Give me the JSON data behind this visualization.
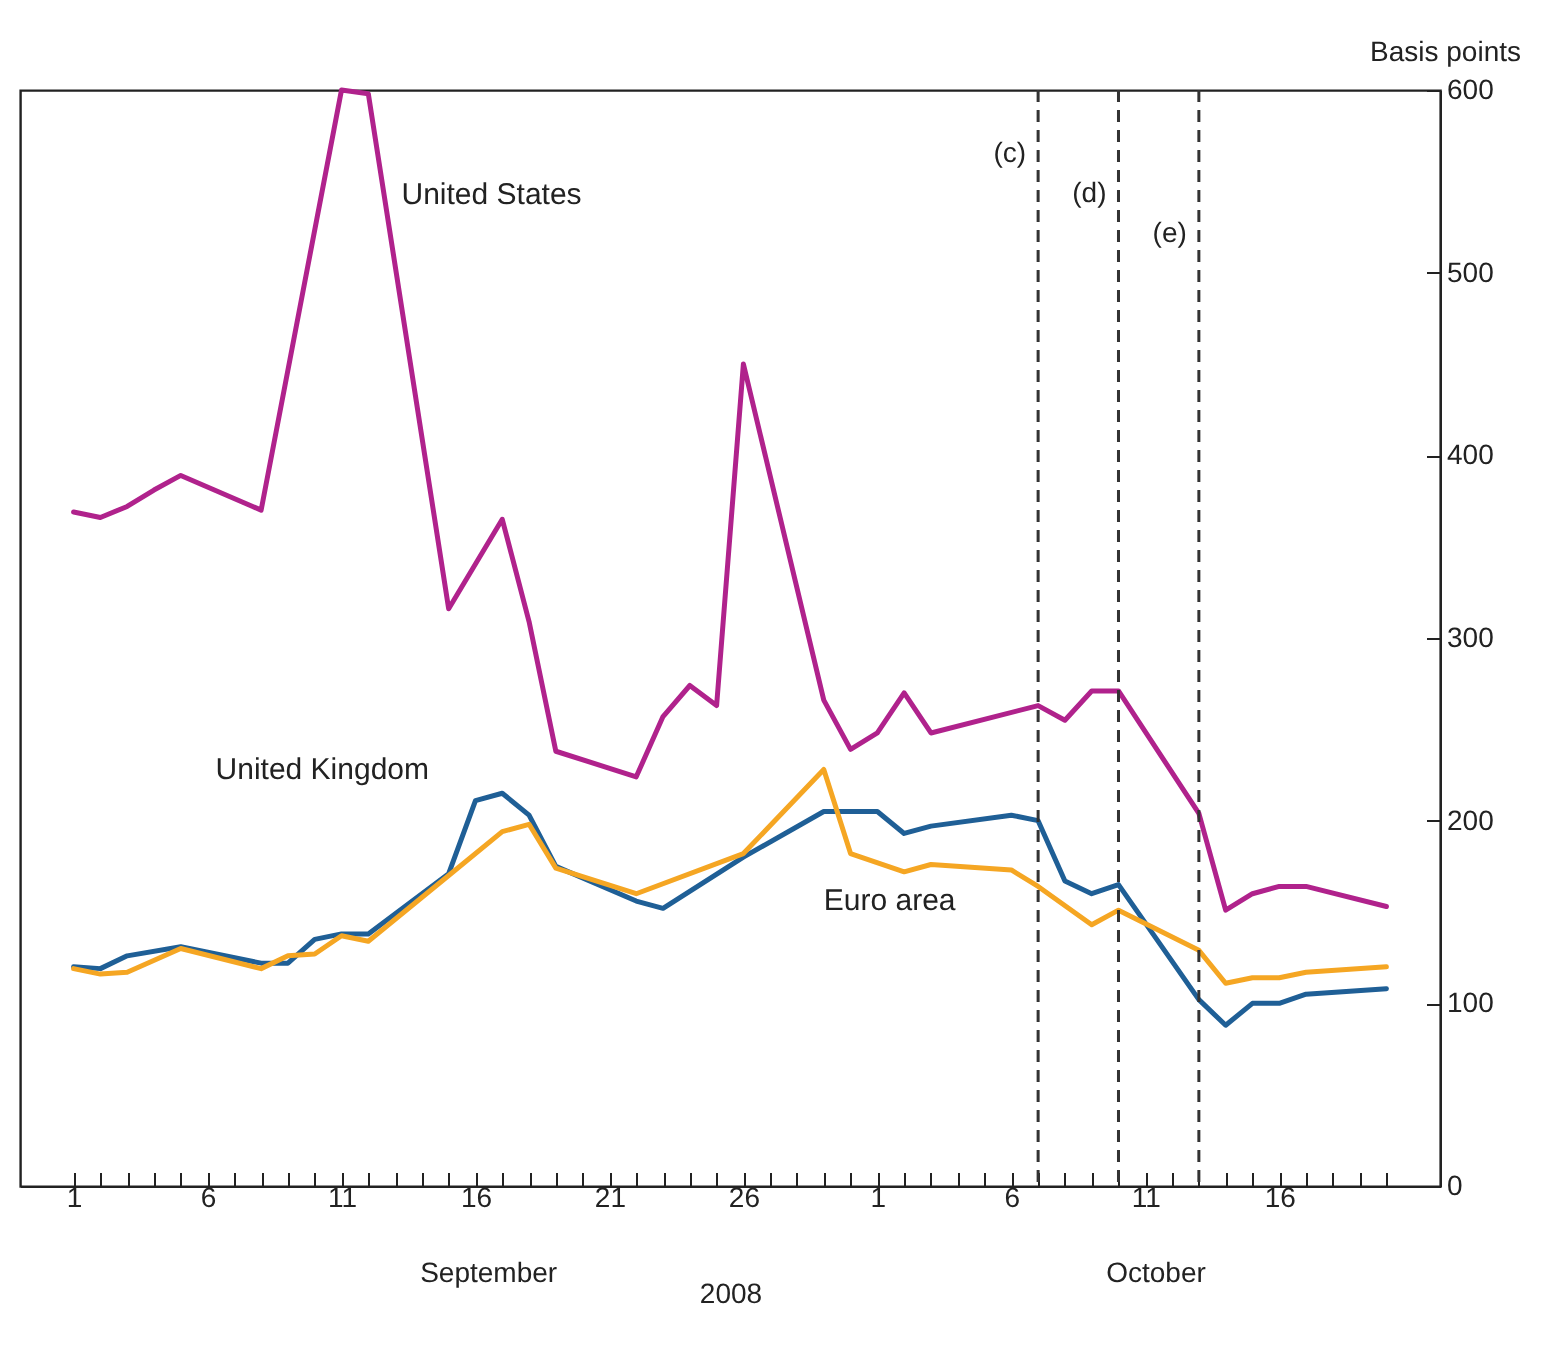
{
  "chart_data": {
    "type": "line",
    "xlabel": "2008",
    "ylabel": "Basis points",
    "annotations": [
      "September",
      "October"
    ],
    "xlim": [
      "2008-08-30",
      "2008-10-22"
    ],
    "xticks": [
      {
        "value": "2008-09-01",
        "label": "1"
      },
      {
        "value": "2008-09-02",
        "label": null
      },
      {
        "value": "2008-09-03",
        "label": null
      },
      {
        "value": "2008-09-04",
        "label": null
      },
      {
        "value": "2008-09-05",
        "label": null
      },
      {
        "value": "2008-09-06",
        "label": "6"
      },
      {
        "value": "2008-09-07",
        "label": null
      },
      {
        "value": "2008-09-08",
        "label": null
      },
      {
        "value": "2008-09-09",
        "label": null
      },
      {
        "value": "2008-09-10",
        "label": null
      },
      {
        "value": "2008-09-11",
        "label": "11"
      },
      {
        "value": "2008-09-12",
        "label": null
      },
      {
        "value": "2008-09-13",
        "label": null
      },
      {
        "value": "2008-09-14",
        "label": null
      },
      {
        "value": "2008-09-15",
        "label": null
      },
      {
        "value": "2008-09-16",
        "label": "16"
      },
      {
        "value": "2008-09-17",
        "label": null
      },
      {
        "value": "2008-09-18",
        "label": null
      },
      {
        "value": "2008-09-19",
        "label": null
      },
      {
        "value": "2008-09-20",
        "label": null
      },
      {
        "value": "2008-09-21",
        "label": "21"
      },
      {
        "value": "2008-09-22",
        "label": null
      },
      {
        "value": "2008-09-23",
        "label": null
      },
      {
        "value": "2008-09-24",
        "label": null
      },
      {
        "value": "2008-09-25",
        "label": null
      },
      {
        "value": "2008-09-26",
        "label": "26"
      },
      {
        "value": "2008-09-27",
        "label": null
      },
      {
        "value": "2008-09-28",
        "label": null
      },
      {
        "value": "2008-09-29",
        "label": null
      },
      {
        "value": "2008-09-30",
        "label": null
      },
      {
        "value": "2008-10-01",
        "label": "1"
      },
      {
        "value": "2008-10-02",
        "label": null
      },
      {
        "value": "2008-10-03",
        "label": null
      },
      {
        "value": "2008-10-04",
        "label": null
      },
      {
        "value": "2008-10-05",
        "label": null
      },
      {
        "value": "2008-10-06",
        "label": "6"
      },
      {
        "value": "2008-10-07",
        "label": null
      },
      {
        "value": "2008-10-08",
        "label": null
      },
      {
        "value": "2008-10-09",
        "label": null
      },
      {
        "value": "2008-10-10",
        "label": null
      },
      {
        "value": "2008-10-11",
        "label": "11"
      },
      {
        "value": "2008-10-12",
        "label": null
      },
      {
        "value": "2008-10-13",
        "label": null
      },
      {
        "value": "2008-10-14",
        "label": null
      },
      {
        "value": "2008-10-15",
        "label": null
      },
      {
        "value": "2008-10-16",
        "label": "16"
      },
      {
        "value": "2008-10-17",
        "label": null
      },
      {
        "value": "2008-10-18",
        "label": null
      },
      {
        "value": "2008-10-19",
        "label": null
      },
      {
        "value": "2008-10-20",
        "label": null
      }
    ],
    "ylim": [
      0,
      600
    ],
    "yticks": [
      0,
      100,
      200,
      300,
      400,
      500,
      600
    ],
    "grid": false,
    "legend": false,
    "marker": "none",
    "line_style": "solid",
    "ref_lines": [
      {
        "axis": "x",
        "value": "2008-10-07",
        "label": "(c)",
        "line_style": "dashed",
        "color": "#333333"
      },
      {
        "axis": "x",
        "value": "2008-10-10",
        "label": "(d)",
        "line_style": "dashed",
        "color": "#333333"
      },
      {
        "axis": "x",
        "value": "2008-10-13",
        "label": "(e)",
        "line_style": "dashed",
        "color": "#333333"
      }
    ],
    "series": [
      {
        "name": "United States",
        "color": "#b0228c",
        "x": [
          "2008-09-01",
          "2008-09-02",
          "2008-09-03",
          "2008-09-04",
          "2008-09-05",
          "2008-09-08",
          "2008-09-11",
          "2008-09-12",
          "2008-09-15",
          "2008-09-17",
          "2008-09-18",
          "2008-09-19",
          "2008-09-22",
          "2008-09-23",
          "2008-09-24",
          "2008-09-25",
          "2008-09-26",
          "2008-09-29",
          "2008-09-30",
          "2008-10-01",
          "2008-10-02",
          "2008-10-03",
          "2008-10-07",
          "2008-10-08",
          "2008-10-09",
          "2008-10-10",
          "2008-10-13",
          "2008-10-14",
          "2008-10-15",
          "2008-10-16",
          "2008-10-17",
          "2008-10-20"
        ],
        "values": [
          369,
          366,
          372,
          381,
          389,
          370,
          600,
          598,
          316,
          365,
          309,
          238,
          224,
          257,
          274,
          263,
          450,
          266,
          239,
          248,
          270,
          248,
          263,
          255,
          271,
          271,
          204,
          151,
          160,
          164,
          164,
          153
        ]
      },
      {
        "name": "United Kingdom",
        "color": "#1f5f96",
        "x": [
          "2008-09-01",
          "2008-09-02",
          "2008-09-03",
          "2008-09-05",
          "2008-09-08",
          "2008-09-09",
          "2008-09-10",
          "2008-09-11",
          "2008-09-12",
          "2008-09-15",
          "2008-09-16",
          "2008-09-17",
          "2008-09-18",
          "2008-09-19",
          "2008-09-22",
          "2008-09-23",
          "2008-09-26",
          "2008-09-29",
          "2008-10-01",
          "2008-10-02",
          "2008-10-03",
          "2008-10-06",
          "2008-10-07",
          "2008-10-08",
          "2008-10-09",
          "2008-10-10",
          "2008-10-13",
          "2008-10-14",
          "2008-10-15",
          "2008-10-16",
          "2008-10-17",
          "2008-10-20"
        ],
        "values": [
          120,
          119,
          126,
          131,
          122,
          122,
          135,
          138,
          138,
          171,
          211,
          215,
          203,
          175,
          156,
          152,
          180,
          205,
          205,
          193,
          197,
          203,
          200,
          167,
          160,
          165,
          102,
          88,
          100,
          100,
          105,
          108
        ]
      },
      {
        "name": "Euro area",
        "color": "#f5a623",
        "x": [
          "2008-09-01",
          "2008-09-02",
          "2008-09-03",
          "2008-09-05",
          "2008-09-08",
          "2008-09-09",
          "2008-09-10",
          "2008-09-11",
          "2008-09-12",
          "2008-09-15",
          "2008-09-17",
          "2008-09-18",
          "2008-09-19",
          "2008-09-22",
          "2008-09-26",
          "2008-09-29",
          "2008-09-30",
          "2008-10-02",
          "2008-10-03",
          "2008-10-06",
          "2008-10-07",
          "2008-10-09",
          "2008-10-10",
          "2008-10-13",
          "2008-10-14",
          "2008-10-15",
          "2008-10-16",
          "2008-10-17",
          "2008-10-20"
        ],
        "values": [
          119,
          116,
          117,
          130,
          119,
          126,
          127,
          137,
          134,
          170,
          194,
          198,
          174,
          160,
          182,
          228,
          182,
          172,
          176,
          173,
          164,
          143,
          151,
          129,
          111,
          114,
          114,
          117,
          120
        ]
      }
    ]
  }
}
